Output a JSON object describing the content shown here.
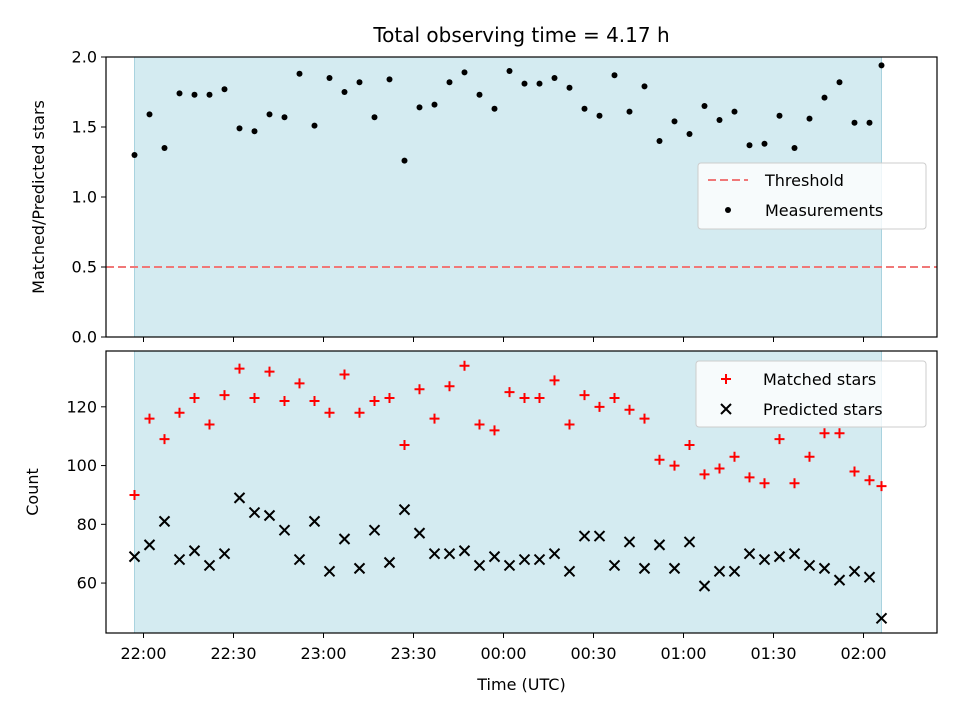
{
  "chart_data": [
    {
      "type": "scatter",
      "title": "Total observing time = 4.17 h",
      "ylabel": "Matched/Predicted stars",
      "ylim": [
        0,
        2.0
      ],
      "yticks": [
        0.0,
        0.5,
        1.0,
        1.5,
        2.0
      ],
      "ytick_labels": [
        "0.0",
        "0.5",
        "1.0",
        "1.5",
        "2.0"
      ],
      "shaded_span": [
        "21:57",
        "02:06"
      ],
      "shade_color": "#d4ebf1",
      "threshold": {
        "name": "Threshold",
        "value": 0.5,
        "color": "#f07878"
      },
      "series": [
        {
          "name": "Measurements",
          "color": "#000000",
          "x": [
            "21:57",
            "22:02",
            "22:07",
            "22:12",
            "22:17",
            "22:22",
            "22:27",
            "22:32",
            "22:37",
            "22:42",
            "22:47",
            "22:52",
            "22:57",
            "23:02",
            "23:07",
            "23:12",
            "23:17",
            "23:22",
            "23:27",
            "23:32",
            "23:37",
            "23:42",
            "23:47",
            "23:52",
            "23:57",
            "00:02",
            "00:07",
            "00:12",
            "00:17",
            "00:22",
            "00:27",
            "00:32",
            "00:37",
            "00:42",
            "00:47",
            "00:52",
            "00:57",
            "01:02",
            "01:07",
            "01:12",
            "01:17",
            "01:22",
            "01:27",
            "01:32",
            "01:37",
            "01:42",
            "01:47",
            "01:52",
            "01:57",
            "02:02",
            "02:06"
          ],
          "y": [
            1.3,
            1.59,
            1.35,
            1.74,
            1.73,
            1.73,
            1.77,
            1.49,
            1.47,
            1.59,
            1.57,
            1.88,
            1.51,
            1.85,
            1.75,
            1.82,
            1.57,
            1.84,
            1.26,
            1.64,
            1.66,
            1.82,
            1.89,
            1.73,
            1.63,
            1.9,
            1.81,
            1.81,
            1.85,
            1.78,
            1.63,
            1.58,
            1.87,
            1.61,
            1.79,
            1.4,
            1.54,
            1.45,
            1.65,
            1.55,
            1.61,
            1.37,
            1.38,
            1.58,
            1.35,
            1.56,
            1.71,
            1.82,
            1.53,
            1.53,
            1.94
          ]
        }
      ],
      "legend": {
        "position": "center-right",
        "entries": [
          "Threshold",
          "Measurements"
        ]
      }
    },
    {
      "type": "scatter",
      "xlabel": "Time (UTC)",
      "ylabel": "Count",
      "ylim": [
        43,
        139
      ],
      "yticks": [
        60,
        80,
        100,
        120
      ],
      "ytick_labels": [
        "60",
        "80",
        "100",
        "120"
      ],
      "xticks": [
        "22:00",
        "22:30",
        "23:00",
        "23:30",
        "00:00",
        "00:30",
        "01:00",
        "01:30",
        "02:00"
      ],
      "shaded_span": [
        "21:57",
        "02:06"
      ],
      "shade_color": "#d4ebf1",
      "series": [
        {
          "name": "Matched stars",
          "color": "#ff0000",
          "marker": "plus",
          "x": [
            "21:57",
            "22:02",
            "22:07",
            "22:12",
            "22:17",
            "22:22",
            "22:27",
            "22:32",
            "22:37",
            "22:42",
            "22:47",
            "22:52",
            "22:57",
            "23:02",
            "23:07",
            "23:12",
            "23:17",
            "23:22",
            "23:27",
            "23:32",
            "23:37",
            "23:42",
            "23:47",
            "23:52",
            "23:57",
            "00:02",
            "00:07",
            "00:12",
            "00:17",
            "00:22",
            "00:27",
            "00:32",
            "00:37",
            "00:42",
            "00:47",
            "00:52",
            "00:57",
            "01:02",
            "01:07",
            "01:12",
            "01:17",
            "01:22",
            "01:27",
            "01:32",
            "01:37",
            "01:42",
            "01:47",
            "01:52",
            "01:57",
            "02:02",
            "02:06"
          ],
          "y": [
            90,
            116,
            109,
            118,
            123,
            114,
            124,
            133,
            123,
            132,
            122,
            128,
            122,
            118,
            131,
            118,
            122,
            123,
            107,
            126,
            116,
            127,
            134,
            114,
            112,
            125,
            123,
            123,
            129,
            114,
            124,
            120,
            123,
            119,
            116,
            102,
            100,
            107,
            97,
            99,
            103,
            96,
            94,
            109,
            94,
            103,
            111,
            111,
            98,
            95,
            93
          ]
        },
        {
          "name": "Predicted stars",
          "color": "#000000",
          "marker": "x",
          "x": [
            "21:57",
            "22:02",
            "22:07",
            "22:12",
            "22:17",
            "22:22",
            "22:27",
            "22:32",
            "22:37",
            "22:42",
            "22:47",
            "22:52",
            "22:57",
            "23:02",
            "23:07",
            "23:12",
            "23:17",
            "23:22",
            "23:27",
            "23:32",
            "23:37",
            "23:42",
            "23:47",
            "23:52",
            "23:57",
            "00:02",
            "00:07",
            "00:12",
            "00:17",
            "00:22",
            "00:27",
            "00:32",
            "00:37",
            "00:42",
            "00:47",
            "00:52",
            "00:57",
            "01:02",
            "01:07",
            "01:12",
            "01:17",
            "01:22",
            "01:27",
            "01:32",
            "01:37",
            "01:42",
            "01:47",
            "01:52",
            "01:57",
            "02:02",
            "02:06"
          ],
          "y": [
            69,
            73,
            81,
            68,
            71,
            66,
            70,
            89,
            84,
            83,
            78,
            68,
            81,
            64,
            75,
            65,
            78,
            67,
            85,
            77,
            70,
            70,
            71,
            66,
            69,
            66,
            68,
            68,
            70,
            64,
            76,
            76,
            66,
            74,
            65,
            73,
            65,
            74,
            59,
            64,
            64,
            70,
            68,
            69,
            70,
            66,
            65,
            61,
            64,
            62,
            48
          ]
        }
      ],
      "legend": {
        "position": "top-right",
        "entries": [
          "Matched stars",
          "Predicted stars"
        ]
      }
    }
  ]
}
